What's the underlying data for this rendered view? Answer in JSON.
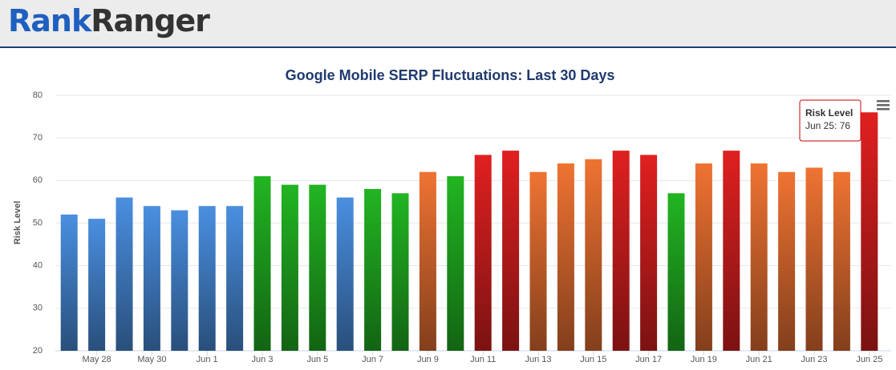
{
  "header": {
    "logo": [
      "Rank",
      "Ranger"
    ]
  },
  "chart_data": {
    "type": "bar",
    "title": "Google Mobile SERP Fluctuations: Last 30 Days",
    "y_label": "Risk Level",
    "categories": [
      null,
      "May 28",
      null,
      "May 30",
      null,
      "Jun 1",
      null,
      "Jun 3",
      null,
      "Jun 5",
      null,
      "Jun 7",
      null,
      "Jun 9",
      null,
      "Jun 11",
      null,
      "Jun 13",
      null,
      "Jun 15",
      null,
      "Jun 17",
      null,
      "Jun 19",
      null,
      "Jun 21",
      null,
      "Jun 23",
      null,
      "Jun 25"
    ],
    "values": [
      52,
      51,
      56,
      54,
      53,
      54,
      54,
      61,
      59,
      59,
      56,
      58,
      57,
      62,
      61,
      66,
      67,
      62,
      64,
      65,
      67,
      66,
      57,
      64,
      67,
      64,
      62,
      63,
      62,
      76
    ],
    "colors": [
      "#4a8fe0",
      "#4a8fe0",
      "#4a8fe0",
      "#4a8fe0",
      "#4a8fe0",
      "#4a8fe0",
      "#4a8fe0",
      "#22b522",
      "#22b522",
      "#22b522",
      "#4a8fe0",
      "#22b522",
      "#22b522",
      "#ef7332",
      "#22b522",
      "#e02020",
      "#e02020",
      "#ef7332",
      "#ef7332",
      "#ef7332",
      "#e02020",
      "#e02020",
      "#22b522",
      "#ef7332",
      "#e02020",
      "#ef7332",
      "#ef7332",
      "#ef7332",
      "#ef7332",
      "#e02020"
    ],
    "ylim": [
      20,
      80
    ],
    "yticks": [
      20,
      30,
      40,
      50,
      60,
      70,
      80
    ],
    "grid": true,
    "tooltip": {
      "title": "Risk Level",
      "label": "Jun 25: 76"
    }
  }
}
